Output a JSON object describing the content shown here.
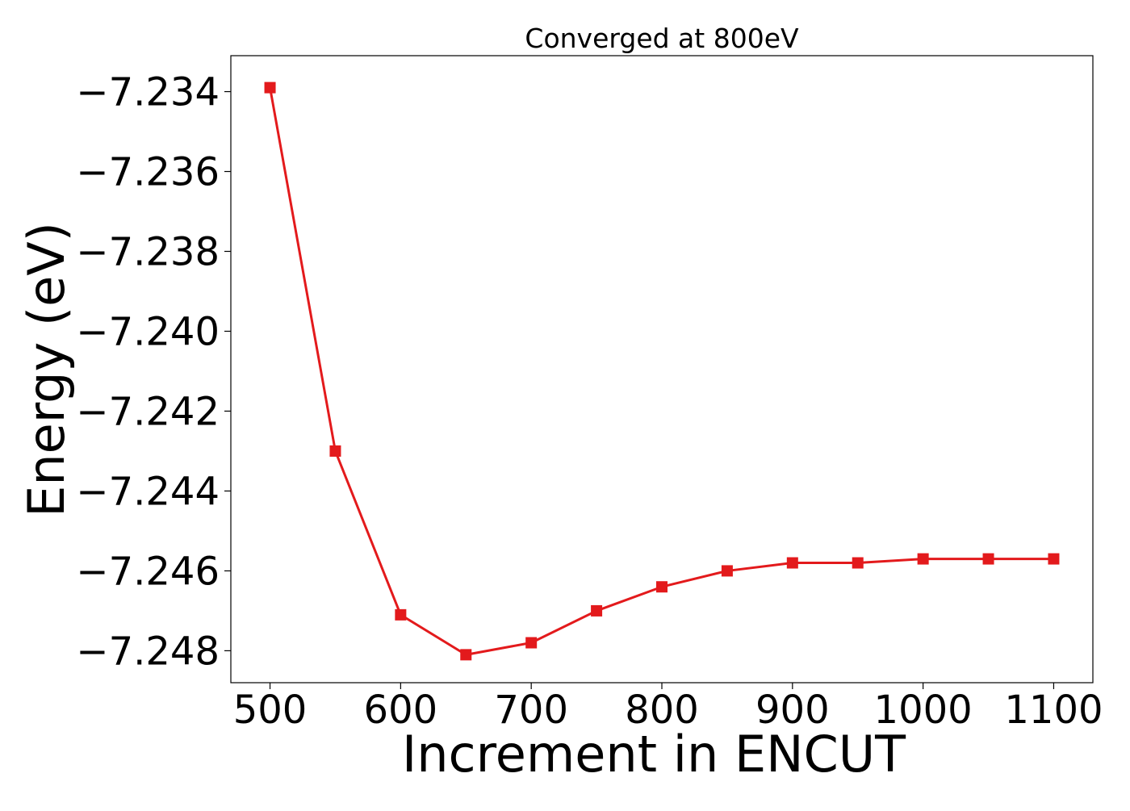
{
  "chart_data": {
    "type": "line",
    "title": "Converged at 800eV",
    "xlabel": "Increment in ENCUT",
    "ylabel": "Energy (eV)",
    "xlim": [
      470,
      1130
    ],
    "ylim": [
      -7.2488,
      -7.2331
    ],
    "x_ticks": [
      500,
      600,
      700,
      800,
      900,
      1000,
      1100
    ],
    "x_tick_labels": [
      "500",
      "600",
      "700",
      "800",
      "900",
      "1000",
      "1100"
    ],
    "y_ticks": [
      -7.234,
      -7.236,
      -7.238,
      -7.24,
      -7.242,
      -7.244,
      -7.246,
      -7.248
    ],
    "y_tick_labels": [
      "−7.234",
      "−7.236",
      "−7.238",
      "−7.240",
      "−7.242",
      "−7.244",
      "−7.246",
      "−7.248"
    ],
    "grid": false,
    "marker": "square",
    "series": [
      {
        "color": "#e31a1c",
        "x": [
          500,
          550,
          600,
          650,
          700,
          750,
          800,
          850,
          900,
          950,
          1000,
          1050,
          1100
        ],
        "y": [
          -7.2339,
          -7.243,
          -7.2471,
          -7.2481,
          -7.2478,
          -7.247,
          -7.2464,
          -7.246,
          -7.2458,
          -7.2458,
          -7.2457,
          -7.2457,
          -7.2457
        ]
      }
    ]
  }
}
